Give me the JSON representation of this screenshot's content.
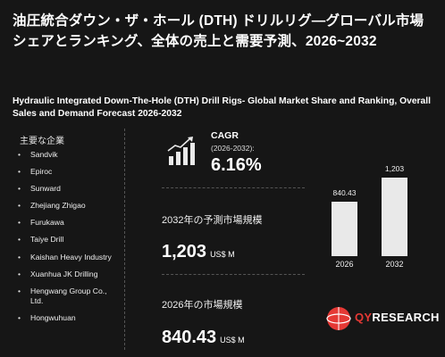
{
  "title_jp": "油圧統合ダウン・ザ・ホール (DTH) ドリルリグ—グローバル市場シェアとランキング、全体の売上と需要予測、2026~2032",
  "title_en": "Hydraulic Integrated Down-The-Hole (DTH) Drill Rigs- Global Market Share and Ranking, Overall Sales and Demand Forecast 2026-2032",
  "companies_heading": "主要な企業",
  "companies": [
    "Sandvik",
    "Epiroc",
    "Sunward",
    "Zhejiang Zhigao",
    "Furukawa",
    "Taiye Drill",
    "Kaishan Heavy Industry",
    "Xuanhua JK Drilling",
    "Hengwang Group Co., Ltd.",
    "Hongwuhuan"
  ],
  "cagr": {
    "label": "CAGR",
    "period": "(2026-2032):",
    "value": "6.16%"
  },
  "market_2032": {
    "label": "2032年の予測市場規模",
    "value": "1,203",
    "unit": "US$ M"
  },
  "market_2026": {
    "label": "2026年の市場規模",
    "value": "840.43",
    "unit": "US$ M"
  },
  "chart_data": {
    "type": "bar",
    "categories": [
      "2026",
      "2032"
    ],
    "values": [
      840.43,
      1203
    ],
    "value_labels": [
      "840.43",
      "1,203"
    ]
  },
  "logo": {
    "text_main": "QY",
    "text_rest": "RESEARCH"
  },
  "colors": {
    "background": "#161616",
    "bar": "#e9e9e9",
    "logo_accent": "#e53935"
  }
}
